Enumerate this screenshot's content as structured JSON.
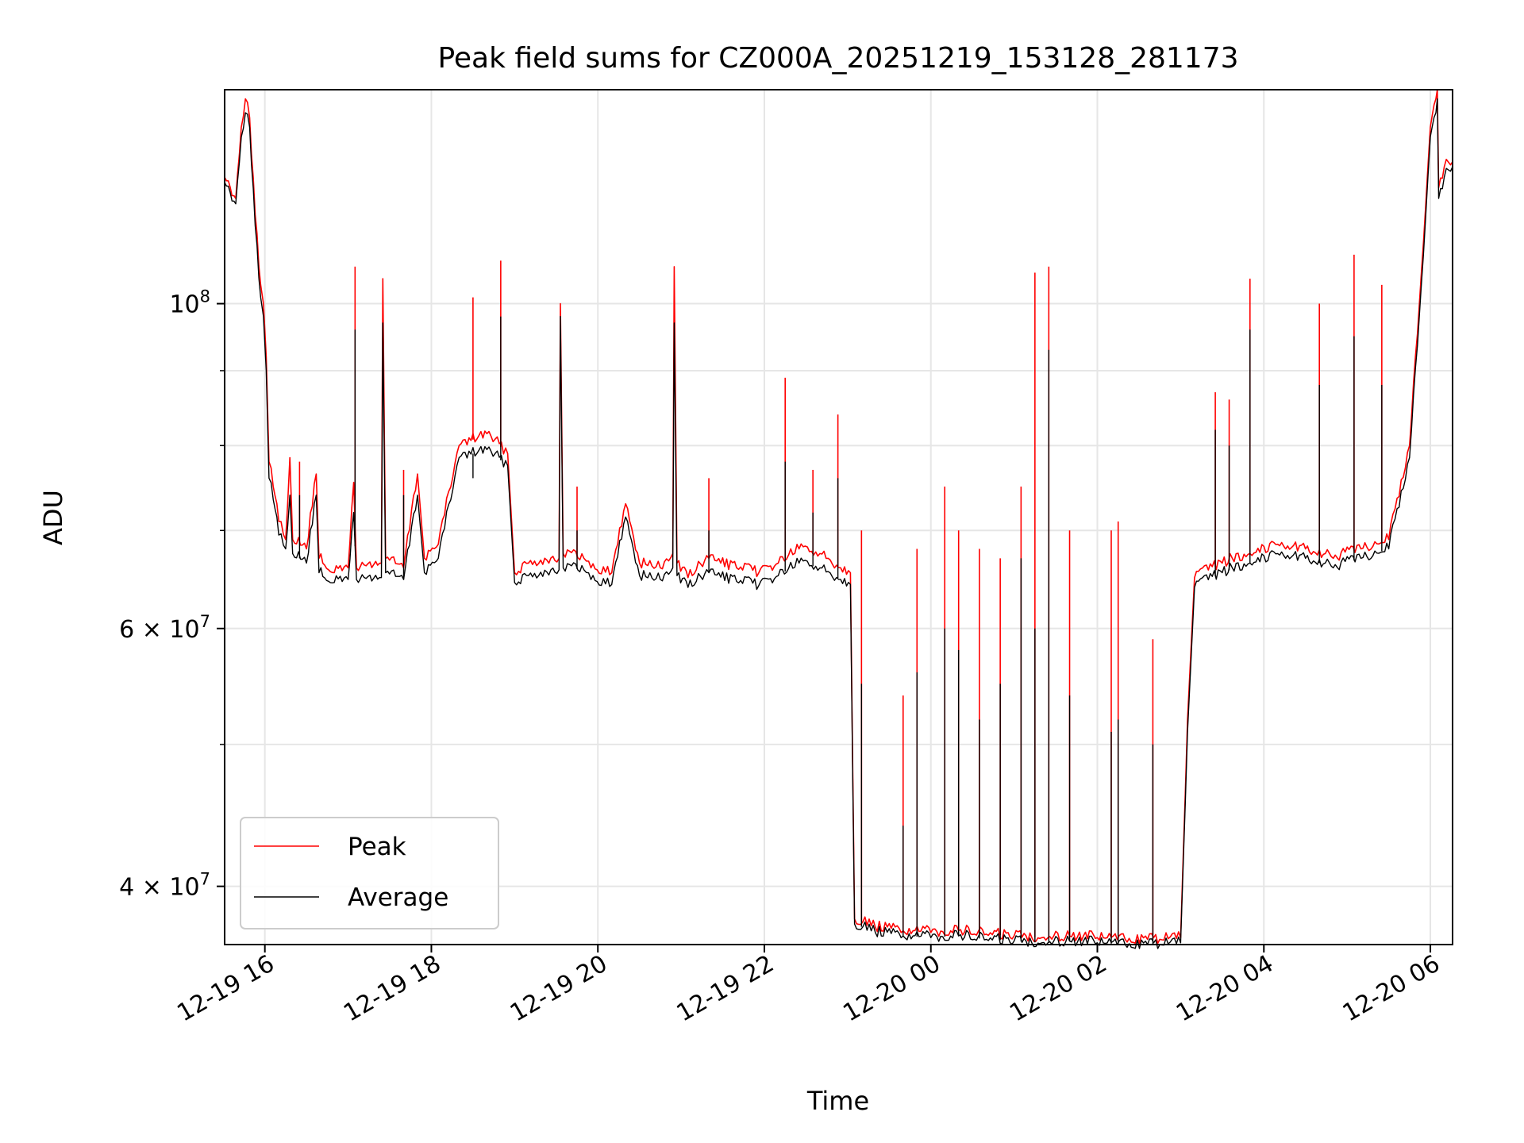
{
  "chart_data": {
    "type": "line",
    "title": "Peak field sums for CZ000A_20251219_153128_281173",
    "xlabel": "Time",
    "ylabel": "ADU",
    "y_scale": "log",
    "grid": true,
    "legend_position": "lower-left",
    "x_range": [
      "2025-12-19 15:31",
      "2025-12-20 06:16"
    ],
    "y_range": [
      36500000,
      140000000
    ],
    "x_ticks": [
      {
        "label": "12-19 16",
        "value": "2025-12-19 16:00"
      },
      {
        "label": "12-19 18",
        "value": "2025-12-19 18:00"
      },
      {
        "label": "12-19 20",
        "value": "2025-12-19 20:00"
      },
      {
        "label": "12-19 22",
        "value": "2025-12-19 22:00"
      },
      {
        "label": "12-20 00",
        "value": "2025-12-20 00:00"
      },
      {
        "label": "12-20 02",
        "value": "2025-12-20 02:00"
      },
      {
        "label": "12-20 04",
        "value": "2025-12-20 04:00"
      },
      {
        "label": "12-20 06",
        "value": "2025-12-20 06:00"
      }
    ],
    "y_ticks_major": [
      {
        "value": 40000000,
        "mantissa": "4",
        "exponent": "7",
        "type": "sci"
      },
      {
        "value": 60000000,
        "mantissa": "6",
        "exponent": "7",
        "type": "sci"
      },
      {
        "value": 100000000,
        "exponent": "8",
        "type": "pow"
      }
    ],
    "y_ticks_minor": [
      50000000,
      70000000,
      80000000,
      90000000
    ],
    "series": [
      {
        "name": "Peak",
        "color": "#ff0000",
        "points": [
          [
            "2025-12-19 15:31",
            122000000
          ],
          [
            "2025-12-19 15:39",
            118000000
          ],
          [
            "2025-12-19 15:43",
            132000000
          ],
          [
            "2025-12-19 15:46",
            138000000
          ],
          [
            "2025-12-19 15:49",
            134000000
          ],
          [
            "2025-12-19 15:53",
            115000000
          ],
          [
            "2025-12-19 15:57",
            103000000
          ],
          [
            "2025-12-19 15:59",
            100000000
          ],
          [
            "2025-12-19 16:01",
            92000000
          ],
          [
            "2025-12-19 16:03",
            78000000
          ],
          [
            "2025-12-19 16:06",
            75000000
          ],
          [
            "2025-12-19 16:10",
            71000000
          ],
          [
            "2025-12-19 16:15",
            69000000
          ],
          [
            "2025-12-19 16:18",
            78500000
          ],
          [
            "2025-12-19 16:20",
            69000000
          ],
          [
            "2025-12-19 16:30",
            68000000
          ],
          [
            "2025-12-19 16:37",
            76500000
          ],
          [
            "2025-12-19 16:39",
            67000000
          ],
          [
            "2025-12-19 16:50",
            65500000
          ],
          [
            "2025-12-19 17:00",
            66000000
          ],
          [
            "2025-12-19 17:04",
            75500000
          ],
          [
            "2025-12-19 17:06",
            66000000
          ],
          [
            "2025-12-19 17:24",
            66500000
          ],
          [
            "2025-12-19 17:25",
            104000000
          ],
          [
            "2025-12-19 17:27",
            67000000
          ],
          [
            "2025-12-19 17:40",
            66000000
          ],
          [
            "2025-12-19 17:50",
            76500000
          ],
          [
            "2025-12-19 17:55",
            67000000
          ],
          [
            "2025-12-19 18:05",
            68500000
          ],
          [
            "2025-12-19 18:20",
            80000000
          ],
          [
            "2025-12-19 18:40",
            81500000
          ],
          [
            "2025-12-19 18:55",
            79000000
          ],
          [
            "2025-12-19 19:00",
            65500000
          ],
          [
            "2025-12-19 19:10",
            66500000
          ],
          [
            "2025-12-19 19:32",
            67000000
          ],
          [
            "2025-12-19 19:33",
            100000000
          ],
          [
            "2025-12-19 19:35",
            67500000
          ],
          [
            "2025-12-19 19:50",
            67000000
          ],
          [
            "2025-12-19 19:55",
            66000000
          ],
          [
            "2025-12-19 20:10",
            65500000
          ],
          [
            "2025-12-19 20:20",
            73000000
          ],
          [
            "2025-12-19 20:30",
            66500000
          ],
          [
            "2025-12-19 20:45",
            66000000
          ],
          [
            "2025-12-19 20:54",
            67500000
          ],
          [
            "2025-12-19 20:55",
            106000000
          ],
          [
            "2025-12-19 20:57",
            66500000
          ],
          [
            "2025-12-19 21:05",
            65000000
          ],
          [
            "2025-12-19 21:20",
            67000000
          ],
          [
            "2025-12-19 21:40",
            66000000
          ],
          [
            "2025-12-19 21:56",
            65500000
          ],
          [
            "2025-12-19 22:10",
            66500000
          ],
          [
            "2025-12-19 22:25",
            68000000
          ],
          [
            "2025-12-19 22:40",
            67500000
          ],
          [
            "2025-12-19 22:55",
            66000000
          ],
          [
            "2025-12-19 23:02",
            65500000
          ],
          [
            "2025-12-19 23:05",
            38000000
          ],
          [
            "2025-12-19 23:20",
            37500000
          ],
          [
            "2025-12-19 23:40",
            37300000
          ],
          [
            "2025-12-20 00:00",
            37200000
          ],
          [
            "2025-12-20 00:20",
            37300000
          ],
          [
            "2025-12-20 00:40",
            37100000
          ],
          [
            "2025-12-20 01:00",
            37000000
          ],
          [
            "2025-12-20 01:20",
            36900000
          ],
          [
            "2025-12-20 01:40",
            37000000
          ],
          [
            "2025-12-20 02:00",
            36900000
          ],
          [
            "2025-12-20 02:20",
            36800000
          ],
          [
            "2025-12-20 02:45",
            36800000
          ],
          [
            "2025-12-20 03:00",
            36900000
          ],
          [
            "2025-12-20 03:05",
            52000000
          ],
          [
            "2025-12-20 03:10",
            65000000
          ],
          [
            "2025-12-20 03:30",
            66500000
          ],
          [
            "2025-12-20 03:50",
            67500000
          ],
          [
            "2025-12-20 04:10",
            68500000
          ],
          [
            "2025-12-20 04:30",
            68000000
          ],
          [
            "2025-12-20 04:50",
            67000000
          ],
          [
            "2025-12-20 05:10",
            68000000
          ],
          [
            "2025-12-20 05:30",
            69000000
          ],
          [
            "2025-12-20 05:45",
            80000000
          ],
          [
            "2025-12-20 05:55",
            110000000
          ],
          [
            "2025-12-20 06:00",
            132000000
          ],
          [
            "2025-12-20 06:04",
            138000000
          ],
          [
            "2025-12-20 06:05",
            140000000
          ],
          [
            "2025-12-20 06:06",
            120000000
          ],
          [
            "2025-12-20 06:10",
            124000000
          ],
          [
            "2025-12-20 06:16",
            125000000
          ]
        ],
        "spikes": [
          [
            "2025-12-19 16:25",
            78000000
          ],
          [
            "2025-12-19 17:05",
            106000000
          ],
          [
            "2025-12-19 17:40",
            77000000
          ],
          [
            "2025-12-19 18:30",
            101000000
          ],
          [
            "2025-12-19 18:50",
            107000000
          ],
          [
            "2025-12-19 19:45",
            75000000
          ],
          [
            "2025-12-19 21:20",
            76000000
          ],
          [
            "2025-12-19 22:15",
            89000000
          ],
          [
            "2025-12-19 22:35",
            77000000
          ],
          [
            "2025-12-19 22:53",
            84000000
          ],
          [
            "2025-12-19 23:10",
            70000000
          ],
          [
            "2025-12-19 23:40",
            54000000
          ],
          [
            "2025-12-19 23:50",
            68000000
          ],
          [
            "2025-12-20 00:10",
            75000000
          ],
          [
            "2025-12-20 00:20",
            70000000
          ],
          [
            "2025-12-20 00:35",
            68000000
          ],
          [
            "2025-12-20 00:50",
            67000000
          ],
          [
            "2025-12-20 01:05",
            75000000
          ],
          [
            "2025-12-20 01:15",
            105000000
          ],
          [
            "2025-12-20 01:25",
            106000000
          ],
          [
            "2025-12-20 01:40",
            70000000
          ],
          [
            "2025-12-20 02:10",
            70000000
          ],
          [
            "2025-12-20 02:15",
            71000000
          ],
          [
            "2025-12-20 02:40",
            59000000
          ],
          [
            "2025-12-20 03:25",
            87000000
          ],
          [
            "2025-12-20 03:35",
            86000000
          ],
          [
            "2025-12-20 03:50",
            104000000
          ],
          [
            "2025-12-20 04:40",
            100000000
          ],
          [
            "2025-12-20 05:05",
            108000000
          ],
          [
            "2025-12-20 05:25",
            103000000
          ]
        ]
      },
      {
        "name": "Average",
        "color": "#000000",
        "points": [
          [
            "2025-12-19 15:31",
            121000000
          ],
          [
            "2025-12-19 15:39",
            117000000
          ],
          [
            "2025-12-19 15:43",
            130000000
          ],
          [
            "2025-12-19 15:46",
            135000000
          ],
          [
            "2025-12-19 15:49",
            132000000
          ],
          [
            "2025-12-19 15:53",
            113000000
          ],
          [
            "2025-12-19 15:57",
            101000000
          ],
          [
            "2025-12-19 15:59",
            98000000
          ],
          [
            "2025-12-19 16:01",
            90000000
          ],
          [
            "2025-12-19 16:03",
            76000000
          ],
          [
            "2025-12-19 16:06",
            73500000
          ],
          [
            "2025-12-19 16:10",
            69500000
          ],
          [
            "2025-12-19 16:15",
            68000000
          ],
          [
            "2025-12-19 16:18",
            74000000
          ],
          [
            "2025-12-19 16:20",
            67500000
          ],
          [
            "2025-12-19 16:30",
            66500000
          ],
          [
            "2025-12-19 16:37",
            74000000
          ],
          [
            "2025-12-19 16:39",
            65500000
          ],
          [
            "2025-12-19 16:50",
            64500000
          ],
          [
            "2025-12-19 17:00",
            64800000
          ],
          [
            "2025-12-19 17:04",
            72000000
          ],
          [
            "2025-12-19 17:06",
            64800000
          ],
          [
            "2025-12-19 17:24",
            65000000
          ],
          [
            "2025-12-19 17:25",
            97000000
          ],
          [
            "2025-12-19 17:27",
            65500000
          ],
          [
            "2025-12-19 17:40",
            64800000
          ],
          [
            "2025-12-19 17:50",
            74000000
          ],
          [
            "2025-12-19 17:55",
            65500000
          ],
          [
            "2025-12-19 18:05",
            67000000
          ],
          [
            "2025-12-19 18:20",
            78500000
          ],
          [
            "2025-12-19 18:40",
            79500000
          ],
          [
            "2025-12-19 18:55",
            77500000
          ],
          [
            "2025-12-19 19:00",
            64500000
          ],
          [
            "2025-12-19 19:10",
            65200000
          ],
          [
            "2025-12-19 19:32",
            65800000
          ],
          [
            "2025-12-19 19:33",
            98000000
          ],
          [
            "2025-12-19 19:35",
            66000000
          ],
          [
            "2025-12-19 19:50",
            65800000
          ],
          [
            "2025-12-19 19:55",
            64800000
          ],
          [
            "2025-12-19 20:10",
            64300000
          ],
          [
            "2025-12-19 20:20",
            71500000
          ],
          [
            "2025-12-19 20:30",
            65200000
          ],
          [
            "2025-12-19 20:45",
            64800000
          ],
          [
            "2025-12-19 20:54",
            66000000
          ],
          [
            "2025-12-19 20:55",
            97000000
          ],
          [
            "2025-12-19 20:57",
            65200000
          ],
          [
            "2025-12-19 21:05",
            64000000
          ],
          [
            "2025-12-19 21:20",
            65500000
          ],
          [
            "2025-12-19 21:40",
            64600000
          ],
          [
            "2025-12-19 21:56",
            64200000
          ],
          [
            "2025-12-19 22:10",
            65200000
          ],
          [
            "2025-12-19 22:25",
            66500000
          ],
          [
            "2025-12-19 22:40",
            66000000
          ],
          [
            "2025-12-19 22:55",
            64800000
          ],
          [
            "2025-12-19 23:02",
            64300000
          ],
          [
            "2025-12-19 23:05",
            37700000
          ],
          [
            "2025-12-19 23:20",
            37200000
          ],
          [
            "2025-12-19 23:40",
            37000000
          ],
          [
            "2025-12-20 00:00",
            36900000
          ],
          [
            "2025-12-20 00:20",
            37000000
          ],
          [
            "2025-12-20 00:40",
            36800000
          ],
          [
            "2025-12-20 01:00",
            36700000
          ],
          [
            "2025-12-20 01:20",
            36600000
          ],
          [
            "2025-12-20 01:40",
            36700000
          ],
          [
            "2025-12-20 02:00",
            36600000
          ],
          [
            "2025-12-20 02:20",
            36500000
          ],
          [
            "2025-12-20 02:45",
            36500000
          ],
          [
            "2025-12-20 03:00",
            36600000
          ],
          [
            "2025-12-20 03:05",
            51000000
          ],
          [
            "2025-12-20 03:10",
            64000000
          ],
          [
            "2025-12-20 03:30",
            65500000
          ],
          [
            "2025-12-20 03:50",
            66500000
          ],
          [
            "2025-12-20 04:10",
            67500000
          ],
          [
            "2025-12-20 04:30",
            67000000
          ],
          [
            "2025-12-20 04:50",
            66000000
          ],
          [
            "2025-12-20 05:10",
            67000000
          ],
          [
            "2025-12-20 05:30",
            68000000
          ],
          [
            "2025-12-20 05:45",
            78500000
          ],
          [
            "2025-12-20 05:55",
            108000000
          ],
          [
            "2025-12-20 06:00",
            130000000
          ],
          [
            "2025-12-20 06:04",
            135000000
          ],
          [
            "2025-12-20 06:05",
            138000000
          ],
          [
            "2025-12-20 06:06",
            118000000
          ],
          [
            "2025-12-20 06:10",
            122000000
          ],
          [
            "2025-12-20 06:16",
            124000000
          ]
        ],
        "spikes": [
          [
            "2025-12-19 16:25",
            74000000
          ],
          [
            "2025-12-19 17:05",
            96000000
          ],
          [
            "2025-12-19 17:40",
            74000000
          ],
          [
            "2025-12-19 18:30",
            76000000
          ],
          [
            "2025-12-19 18:50",
            98000000
          ],
          [
            "2025-12-19 19:45",
            70000000
          ],
          [
            "2025-12-19 21:20",
            70000000
          ],
          [
            "2025-12-19 22:15",
            78000000
          ],
          [
            "2025-12-19 22:35",
            72000000
          ],
          [
            "2025-12-19 22:53",
            76000000
          ],
          [
            "2025-12-19 23:10",
            55000000
          ],
          [
            "2025-12-19 23:40",
            44000000
          ],
          [
            "2025-12-19 23:50",
            56000000
          ],
          [
            "2025-12-20 00:10",
            60000000
          ],
          [
            "2025-12-20 00:20",
            58000000
          ],
          [
            "2025-12-20 00:35",
            52000000
          ],
          [
            "2025-12-20 00:50",
            55000000
          ],
          [
            "2025-12-20 01:05",
            67000000
          ],
          [
            "2025-12-20 01:15",
            60000000
          ],
          [
            "2025-12-20 01:25",
            93000000
          ],
          [
            "2025-12-20 01:40",
            54000000
          ],
          [
            "2025-12-20 02:10",
            51000000
          ],
          [
            "2025-12-20 02:15",
            52000000
          ],
          [
            "2025-12-20 02:40",
            50000000
          ],
          [
            "2025-12-20 03:25",
            82000000
          ],
          [
            "2025-12-20 03:35",
            80000000
          ],
          [
            "2025-12-20 03:50",
            96000000
          ],
          [
            "2025-12-20 04:40",
            88000000
          ],
          [
            "2025-12-20 05:05",
            95000000
          ],
          [
            "2025-12-20 05:25",
            88000000
          ]
        ]
      }
    ]
  }
}
